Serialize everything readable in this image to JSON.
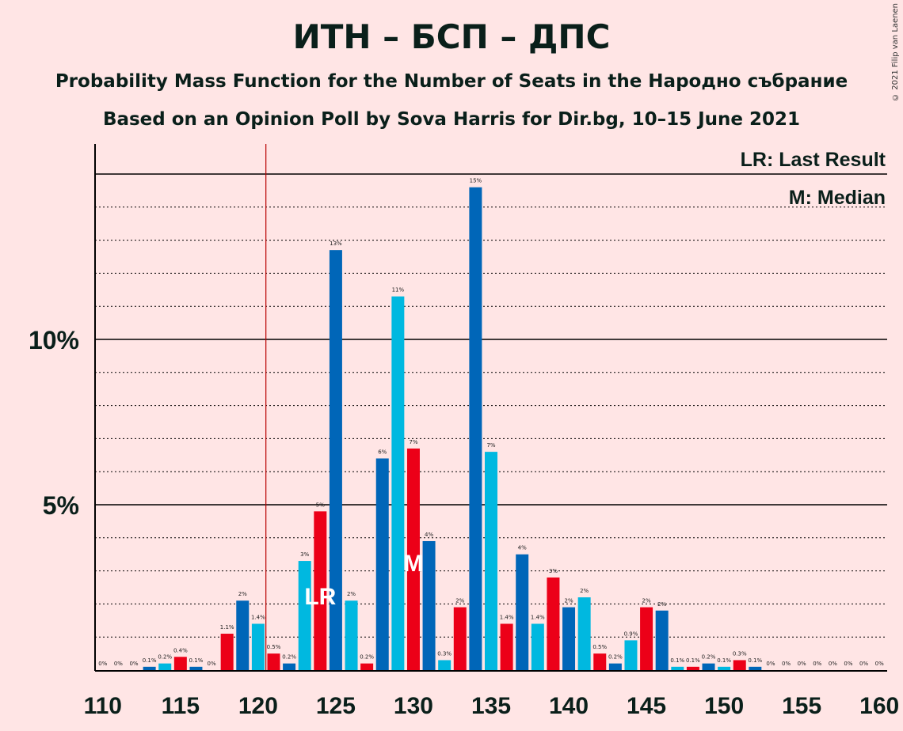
{
  "title": "ИТН – БСП – ДПС",
  "subtitle": "Probability Mass Function for the Number of Seats in the Народно събрание",
  "subtitle2": "Based on an Opinion Poll by Sova Harris for Dir.bg, 10–15 June 2021",
  "copyright": "© 2021 Filip van Laenen",
  "legend": {
    "lr": "LR: Last Result",
    "median": "M: Median"
  },
  "colors": {
    "dark_blue": "#0066B8",
    "light_blue": "#00B8E0",
    "red": "#EC0018",
    "background": "#FFE5E5",
    "last_result_line": "#B80000"
  },
  "chart_data": {
    "type": "bar",
    "x": [
      110,
      111,
      112,
      113,
      114,
      115,
      116,
      117,
      118,
      119,
      120,
      121,
      122,
      123,
      124,
      125,
      126,
      127,
      128,
      129,
      130,
      131,
      132,
      133,
      134,
      135,
      136,
      137,
      138,
      139,
      140,
      141,
      142,
      143,
      144,
      145,
      146,
      147,
      148,
      149,
      150,
      151,
      152,
      153,
      154,
      155,
      156,
      157,
      158,
      159,
      160
    ],
    "values": [
      0,
      0,
      0,
      0.1,
      0.2,
      0.4,
      0.1,
      0,
      1.1,
      2.1,
      1.4,
      0.5,
      0.2,
      3.3,
      4.8,
      12.7,
      2.1,
      0.2,
      6.4,
      11.3,
      6.7,
      3.9,
      0.3,
      1.9,
      14.6,
      6.6,
      1.4,
      3.5,
      1.4,
      2.8,
      1.9,
      2.2,
      0.5,
      0.2,
      0.9,
      1.9,
      1.8,
      0.1,
      0.1,
      0.2,
      0.1,
      0.3,
      0.1,
      0,
      0,
      0,
      0,
      0,
      0,
      0,
      0
    ],
    "value_labels": [
      "0%",
      "0%",
      "0%",
      "0.1%",
      "0.2%",
      "0.4%",
      "0.1%",
      "0%",
      "1.1%",
      "2%",
      "1.4%",
      "0.5%",
      "0.2%",
      "3%",
      "5%",
      "13%",
      "2%",
      "0.2%",
      "6%",
      "11%",
      "7%",
      "4%",
      "0.3%",
      "2%",
      "15%",
      "7%",
      "1.4%",
      "4%",
      "1.4%",
      "3%",
      "2%",
      "2%",
      "0.5%",
      "0.2%",
      "0.9%",
      "2%",
      "2%",
      "0.1%",
      "0.1%",
      "0.2%",
      "0.1%",
      "0.3%",
      "0.1%",
      "0%",
      "0%",
      "0%",
      "0%",
      "0%",
      "0%",
      "0%",
      "0%"
    ],
    "x_ticks": [
      "110",
      "115",
      "120",
      "125",
      "130",
      "135",
      "140",
      "145",
      "150",
      "155",
      "160"
    ],
    "y_ticks": [
      "5%",
      "10%"
    ],
    "ylim": [
      0,
      16
    ],
    "last_result": 121,
    "last_result_label": "LR",
    "last_result_label_at": 124,
    "median": 130,
    "median_label": "M",
    "grid": true
  }
}
